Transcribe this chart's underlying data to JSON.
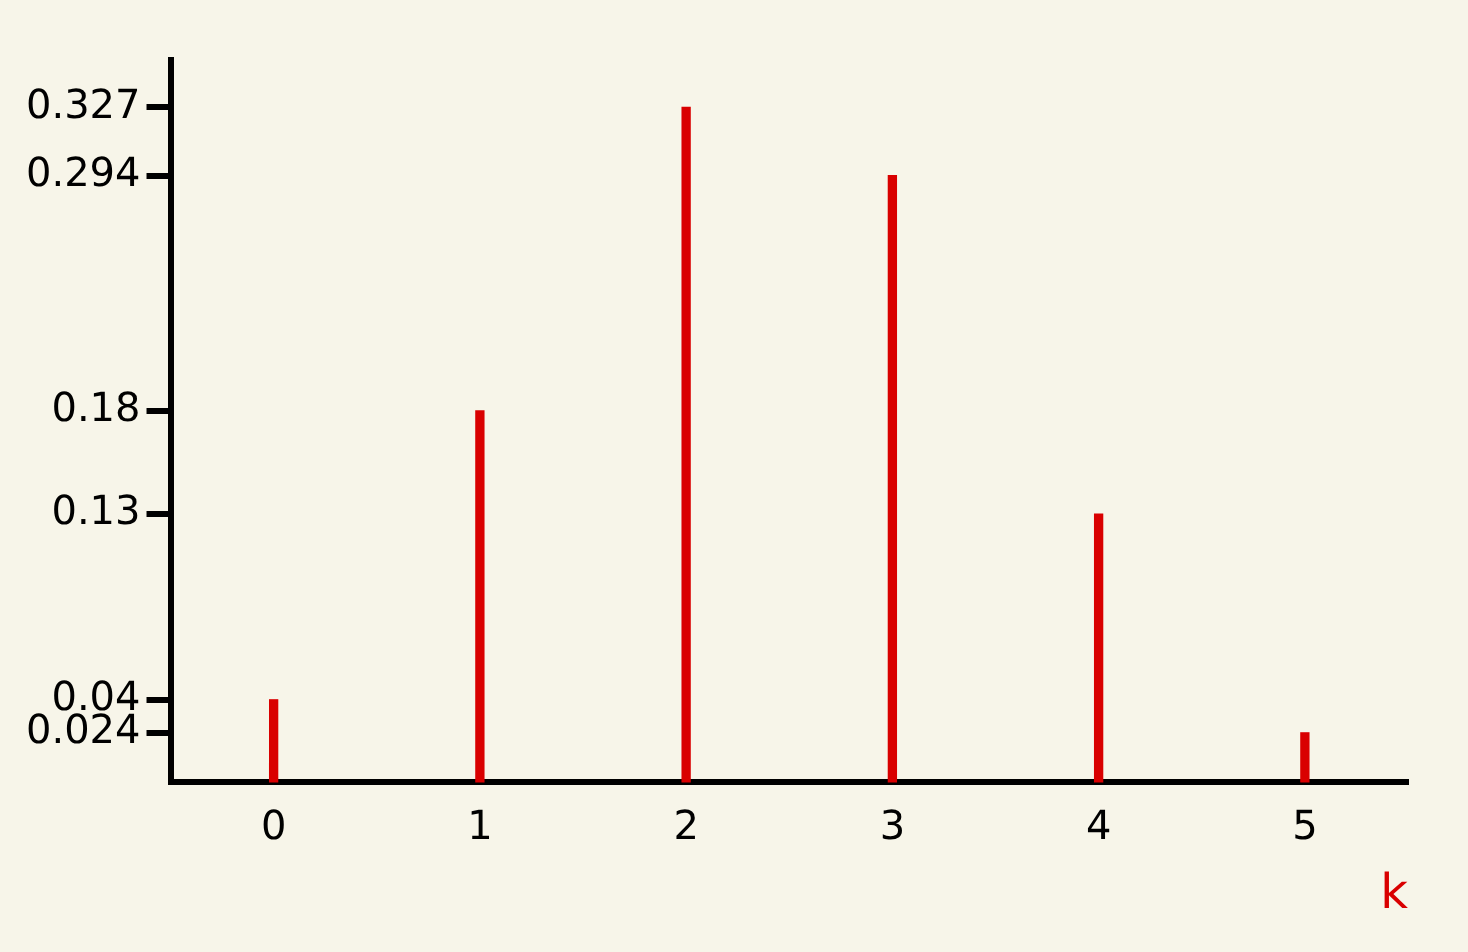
{
  "chart_data": {
    "type": "bar",
    "xlabel": "k",
    "categories": [
      "0",
      "1",
      "2",
      "3",
      "4",
      "5"
    ],
    "values": [
      0.04,
      0.18,
      0.327,
      0.294,
      0.13,
      0.024
    ],
    "color": "#d90000",
    "ylim": [
      0,
      0.35
    ],
    "yticks": [
      0.024,
      0.04,
      0.13,
      0.18,
      0.294,
      0.327
    ],
    "grid": false,
    "legend": false
  }
}
